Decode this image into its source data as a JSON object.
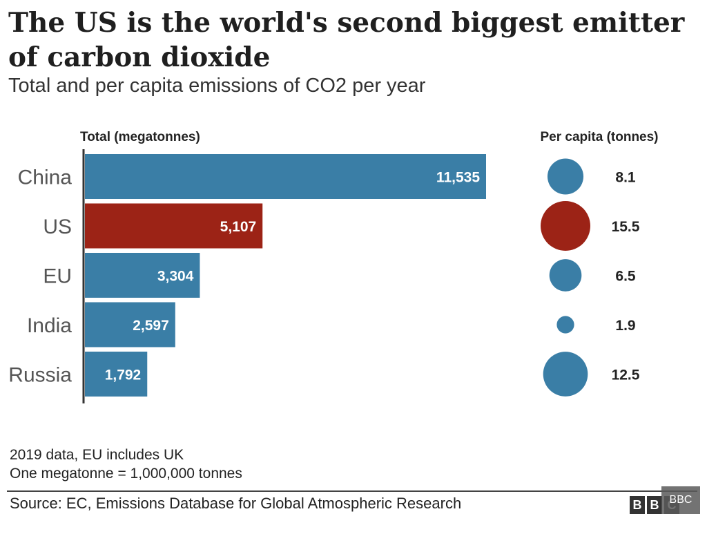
{
  "header": {
    "title": "The US is the world's second biggest emitter of carbon dioxide",
    "subtitle": "Total and per capita emissions of CO2 per year"
  },
  "chart_data": {
    "type": "bar",
    "title": "The US is the world's second biggest emitter of carbon dioxide",
    "subtitle": "Total and per capita emissions of CO2 per year",
    "total_heading": "Total (megatonnes)",
    "per_capita_heading": "Per capita (tonnes)",
    "categories": [
      "China",
      "US",
      "EU",
      "India",
      "Russia"
    ],
    "series": [
      {
        "name": "Total (megatonnes)",
        "values": [
          11535,
          5107,
          3304,
          2597,
          1792
        ],
        "labels": [
          "11,535",
          "5,107",
          "3,304",
          "2,597",
          "1,792"
        ]
      },
      {
        "name": "Per capita (tonnes)",
        "values": [
          8.1,
          15.5,
          6.5,
          1.9,
          12.5
        ],
        "labels": [
          "8.1",
          "15.5",
          "6.5",
          "1.9",
          "12.5"
        ]
      }
    ],
    "highlight_category": "US",
    "xlim": [
      0,
      11535
    ],
    "grid": false,
    "colors": {
      "default": "#3a7ea6",
      "highlight": "#9c2316"
    }
  },
  "footer": {
    "note1": "2019 data, EU includes UK",
    "note2": "One megatonne = 1,000,000 tonnes",
    "source": "Source: EC, Emissions Database for Global Atmospheric Research",
    "logo_letters": [
      "B",
      "B",
      "C"
    ],
    "logo_overlay": "BBC"
  }
}
